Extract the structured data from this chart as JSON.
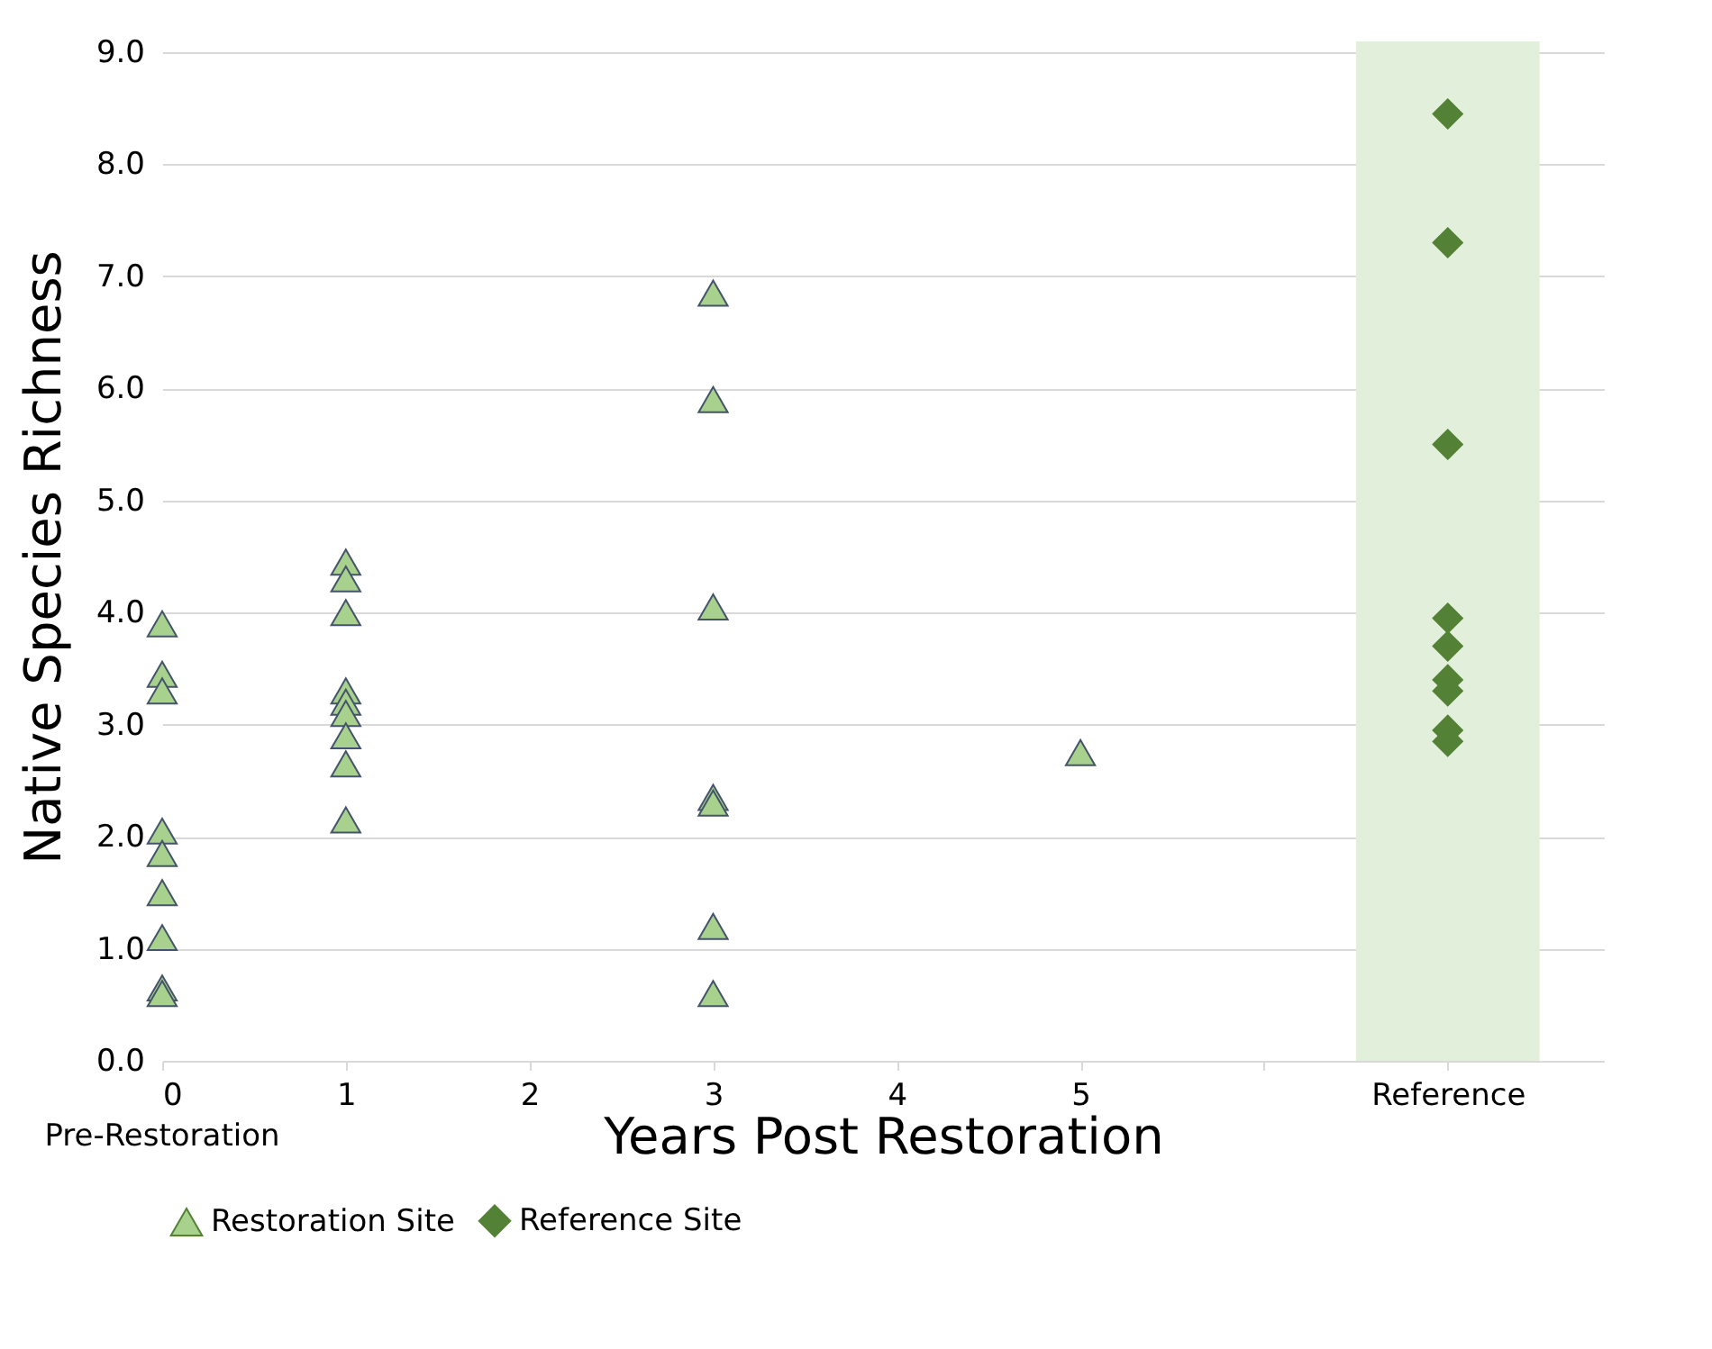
{
  "chart_data": {
    "type": "scatter",
    "xlabel": "Years Post Restoration",
    "ylabel": "Native Species Richness",
    "xlim": [
      0,
      7.85
    ],
    "xticks": [
      0,
      1,
      2,
      3,
      4,
      5,
      {
        "value": 6,
        "label": null
      },
      {
        "value": 7,
        "label": "Reference"
      }
    ],
    "ylim": [
      0,
      9
    ],
    "yticks": [
      {
        "value": 0,
        "label": "0.0"
      },
      {
        "value": 1,
        "label": "1.0"
      },
      {
        "value": 2,
        "label": "2.0"
      },
      {
        "value": 3,
        "label": "3.0"
      },
      {
        "value": 4,
        "label": "4.0"
      },
      {
        "value": 5,
        "label": "5.0"
      },
      {
        "value": 6,
        "label": "6.0"
      },
      {
        "value": 7,
        "label": "7.0"
      },
      {
        "value": 8,
        "label": "8.0"
      },
      {
        "value": 9,
        "label": "9.0"
      }
    ],
    "grid": "y",
    "legend": "bottom",
    "bands": [
      {
        "axis": "x",
        "from": 6.5,
        "to": 7.5,
        "color": "#e2efda"
      }
    ],
    "annotations": [
      "Pre-Restoration"
    ],
    "series": [
      {
        "name": "Restoration Site",
        "color": "#a9d18e",
        "marker": "triangle",
        "x": [
          0,
          0,
          0,
          0,
          0,
          0,
          0,
          0,
          0,
          1,
          1,
          1,
          1,
          1,
          1,
          1,
          1,
          1,
          3,
          3,
          3,
          3,
          3,
          3,
          3,
          5
        ],
        "values": [
          3.9,
          3.45,
          3.3,
          2.05,
          1.85,
          1.5,
          1.1,
          0.65,
          0.6,
          4.45,
          4.3,
          4.0,
          3.3,
          3.2,
          3.1,
          2.9,
          2.65,
          2.15,
          6.85,
          5.9,
          4.05,
          2.35,
          2.3,
          1.2,
          0.6,
          2.75
        ]
      },
      {
        "name": "Reference Site",
        "color": "#538135",
        "marker": "diamond",
        "x": [
          7,
          7,
          7,
          7,
          7,
          7,
          7,
          7,
          7
        ],
        "values": [
          8.45,
          7.3,
          5.5,
          3.95,
          3.7,
          3.4,
          3.3,
          2.95,
          2.85
        ]
      }
    ]
  }
}
